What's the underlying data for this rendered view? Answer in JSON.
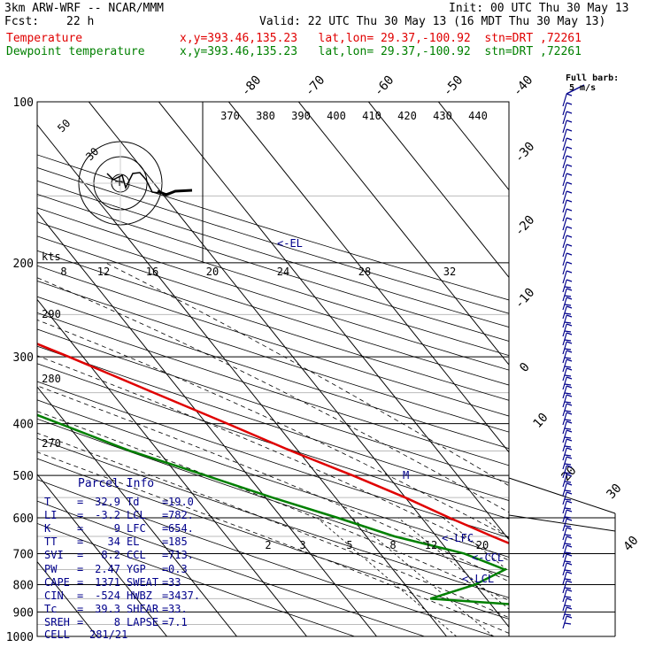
{
  "header": {
    "model": "3km ARW-WRF -- NCAR/MMM",
    "init": "Init: 00 UTC Thu 30 May 13",
    "fcst_label": "Fcst:",
    "fcst_value": "22 h",
    "valid": "Valid: 22 UTC Thu 30 May 13 (16 MDT Thu 30 May 13)",
    "temp_label": "Temperature",
    "temp_info": "x,y=393.46,135.23   lat,lon= 29.37,-100.92  stn=DRT ,72261",
    "dew_label": "Dewpoint temperature",
    "dew_info": "x,y=393.46,135.23   lat,lon= 29.37,-100.92  stn=DRT ,72261"
  },
  "colors": {
    "temperature": "#e00000",
    "dewpoint": "#008000",
    "skew_lines": "#000000",
    "barbs": "#00008b",
    "parcel_text": "#00008b"
  },
  "barb_legend": {
    "line1": "Full barb:",
    "line2": "5 m/s"
  },
  "hodograph": {
    "ring_labels": [
      "50",
      "30"
    ],
    "kts_label": "kts"
  },
  "chart_data": {
    "type": "line",
    "yscale": "log",
    "ylim": [
      1000,
      100
    ],
    "pressure_ticks": [
      100,
      200,
      300,
      400,
      500,
      600,
      700,
      800,
      900,
      1000
    ],
    "isotherm_labels": [
      "-80",
      "-70",
      "-60",
      "-50",
      "-40",
      "-30",
      "-20",
      "-10",
      "0",
      "10",
      "20",
      "30",
      "40"
    ],
    "theta_labels": [
      "370",
      "380",
      "390",
      "400",
      "410",
      "420",
      "430",
      "440"
    ],
    "mixing_ratio_labels_upper": [
      "8",
      "12",
      "16",
      "20",
      "24",
      "28",
      "32"
    ],
    "mixing_ratio_labels_lower": [
      "2",
      "3",
      "5",
      "8",
      "12",
      "20"
    ],
    "dry_adiabat_labels": [
      "290",
      "280",
      "270"
    ],
    "annotations": [
      "<-EL",
      "<-LFC",
      "<-CCL",
      "<-LCL",
      "M"
    ],
    "series": [
      {
        "name": "Temperature",
        "points": [
          {
            "p": 1000,
            "t": 34
          },
          {
            "p": 950,
            "t": 32.9
          },
          {
            "p": 900,
            "t": 31
          },
          {
            "p": 850,
            "t": 27
          },
          {
            "p": 800,
            "t": 22
          },
          {
            "p": 750,
            "t": 17
          },
          {
            "p": 700,
            "t": 12
          },
          {
            "p": 650,
            "t": 8
          },
          {
            "p": 600,
            "t": 4
          },
          {
            "p": 550,
            "t": 0
          },
          {
            "p": 500,
            "t": -5
          },
          {
            "p": 450,
            "t": -11
          },
          {
            "p": 400,
            "t": -17
          },
          {
            "p": 350,
            "t": -24
          },
          {
            "p": 300,
            "t": -32
          },
          {
            "p": 250,
            "t": -42
          },
          {
            "p": 200,
            "t": -53
          },
          {
            "p": 180,
            "t": -58
          },
          {
            "p": 150,
            "t": -63
          },
          {
            "p": 130,
            "t": -64
          },
          {
            "p": 110,
            "t": -63
          },
          {
            "p": 100,
            "t": -60
          }
        ]
      },
      {
        "name": "Dewpoint temperature",
        "points": [
          {
            "p": 1000,
            "t": 19
          },
          {
            "p": 950,
            "t": 19
          },
          {
            "p": 900,
            "t": 18
          },
          {
            "p": 850,
            "t": -8
          },
          {
            "p": 800,
            "t": 0
          },
          {
            "p": 750,
            "t": 6
          },
          {
            "p": 700,
            "t": 2
          },
          {
            "p": 650,
            "t": -6
          },
          {
            "p": 600,
            "t": -12
          },
          {
            "p": 550,
            "t": -19
          },
          {
            "p": 500,
            "t": -26
          },
          {
            "p": 450,
            "t": -34
          },
          {
            "p": 400,
            "t": -41
          },
          {
            "p": 350,
            "t": -49
          },
          {
            "p": 300,
            "t": -56
          },
          {
            "p": 250,
            "t": -65
          },
          {
            "p": 200,
            "t": -73
          },
          {
            "p": 180,
            "t": -78
          },
          {
            "p": 150,
            "t": -82
          },
          {
            "p": 130,
            "t": -84
          },
          {
            "p": 110,
            "t": -86
          },
          {
            "p": 100,
            "t": -87
          }
        ]
      }
    ]
  },
  "parcel_info": {
    "title": "Parcel Info",
    "rows": [
      {
        "a_label": "T",
        "a_value": "32.9",
        "b_label": "Td",
        "b_value": "19.0"
      },
      {
        "a_label": "LI",
        "a_value": "-3.2",
        "b_label": "LCL",
        "b_value": "782."
      },
      {
        "a_label": "K",
        "a_value": "9",
        "b_label": "LFC",
        "b_value": "654."
      },
      {
        "a_label": "TT",
        "a_value": "34",
        "b_label": "EL",
        "b_value": "185"
      },
      {
        "a_label": "SVI",
        "a_value": "8.2",
        "b_label": "CCL",
        "b_value": "713."
      },
      {
        "a_label": "PW",
        "a_value": "2.47",
        "b_label": "YGP",
        "b_value": "0.3"
      },
      {
        "a_label": "CAPE",
        "a_value": "1371",
        "b_label": "SWEAT",
        "b_value": "33"
      },
      {
        "a_label": "CIN",
        "a_value": "-524",
        "b_label": "HWBZ",
        "b_value": "3437."
      },
      {
        "a_label": "Tc",
        "a_value": "39.3",
        "b_label": "SHEAR",
        "b_value": "33."
      },
      {
        "a_label": "SREH",
        "a_value": "8",
        "b_label": "LAPSE",
        "b_value": "7.1"
      }
    ],
    "cell_label": "CELL",
    "cell_value": "281/21"
  }
}
